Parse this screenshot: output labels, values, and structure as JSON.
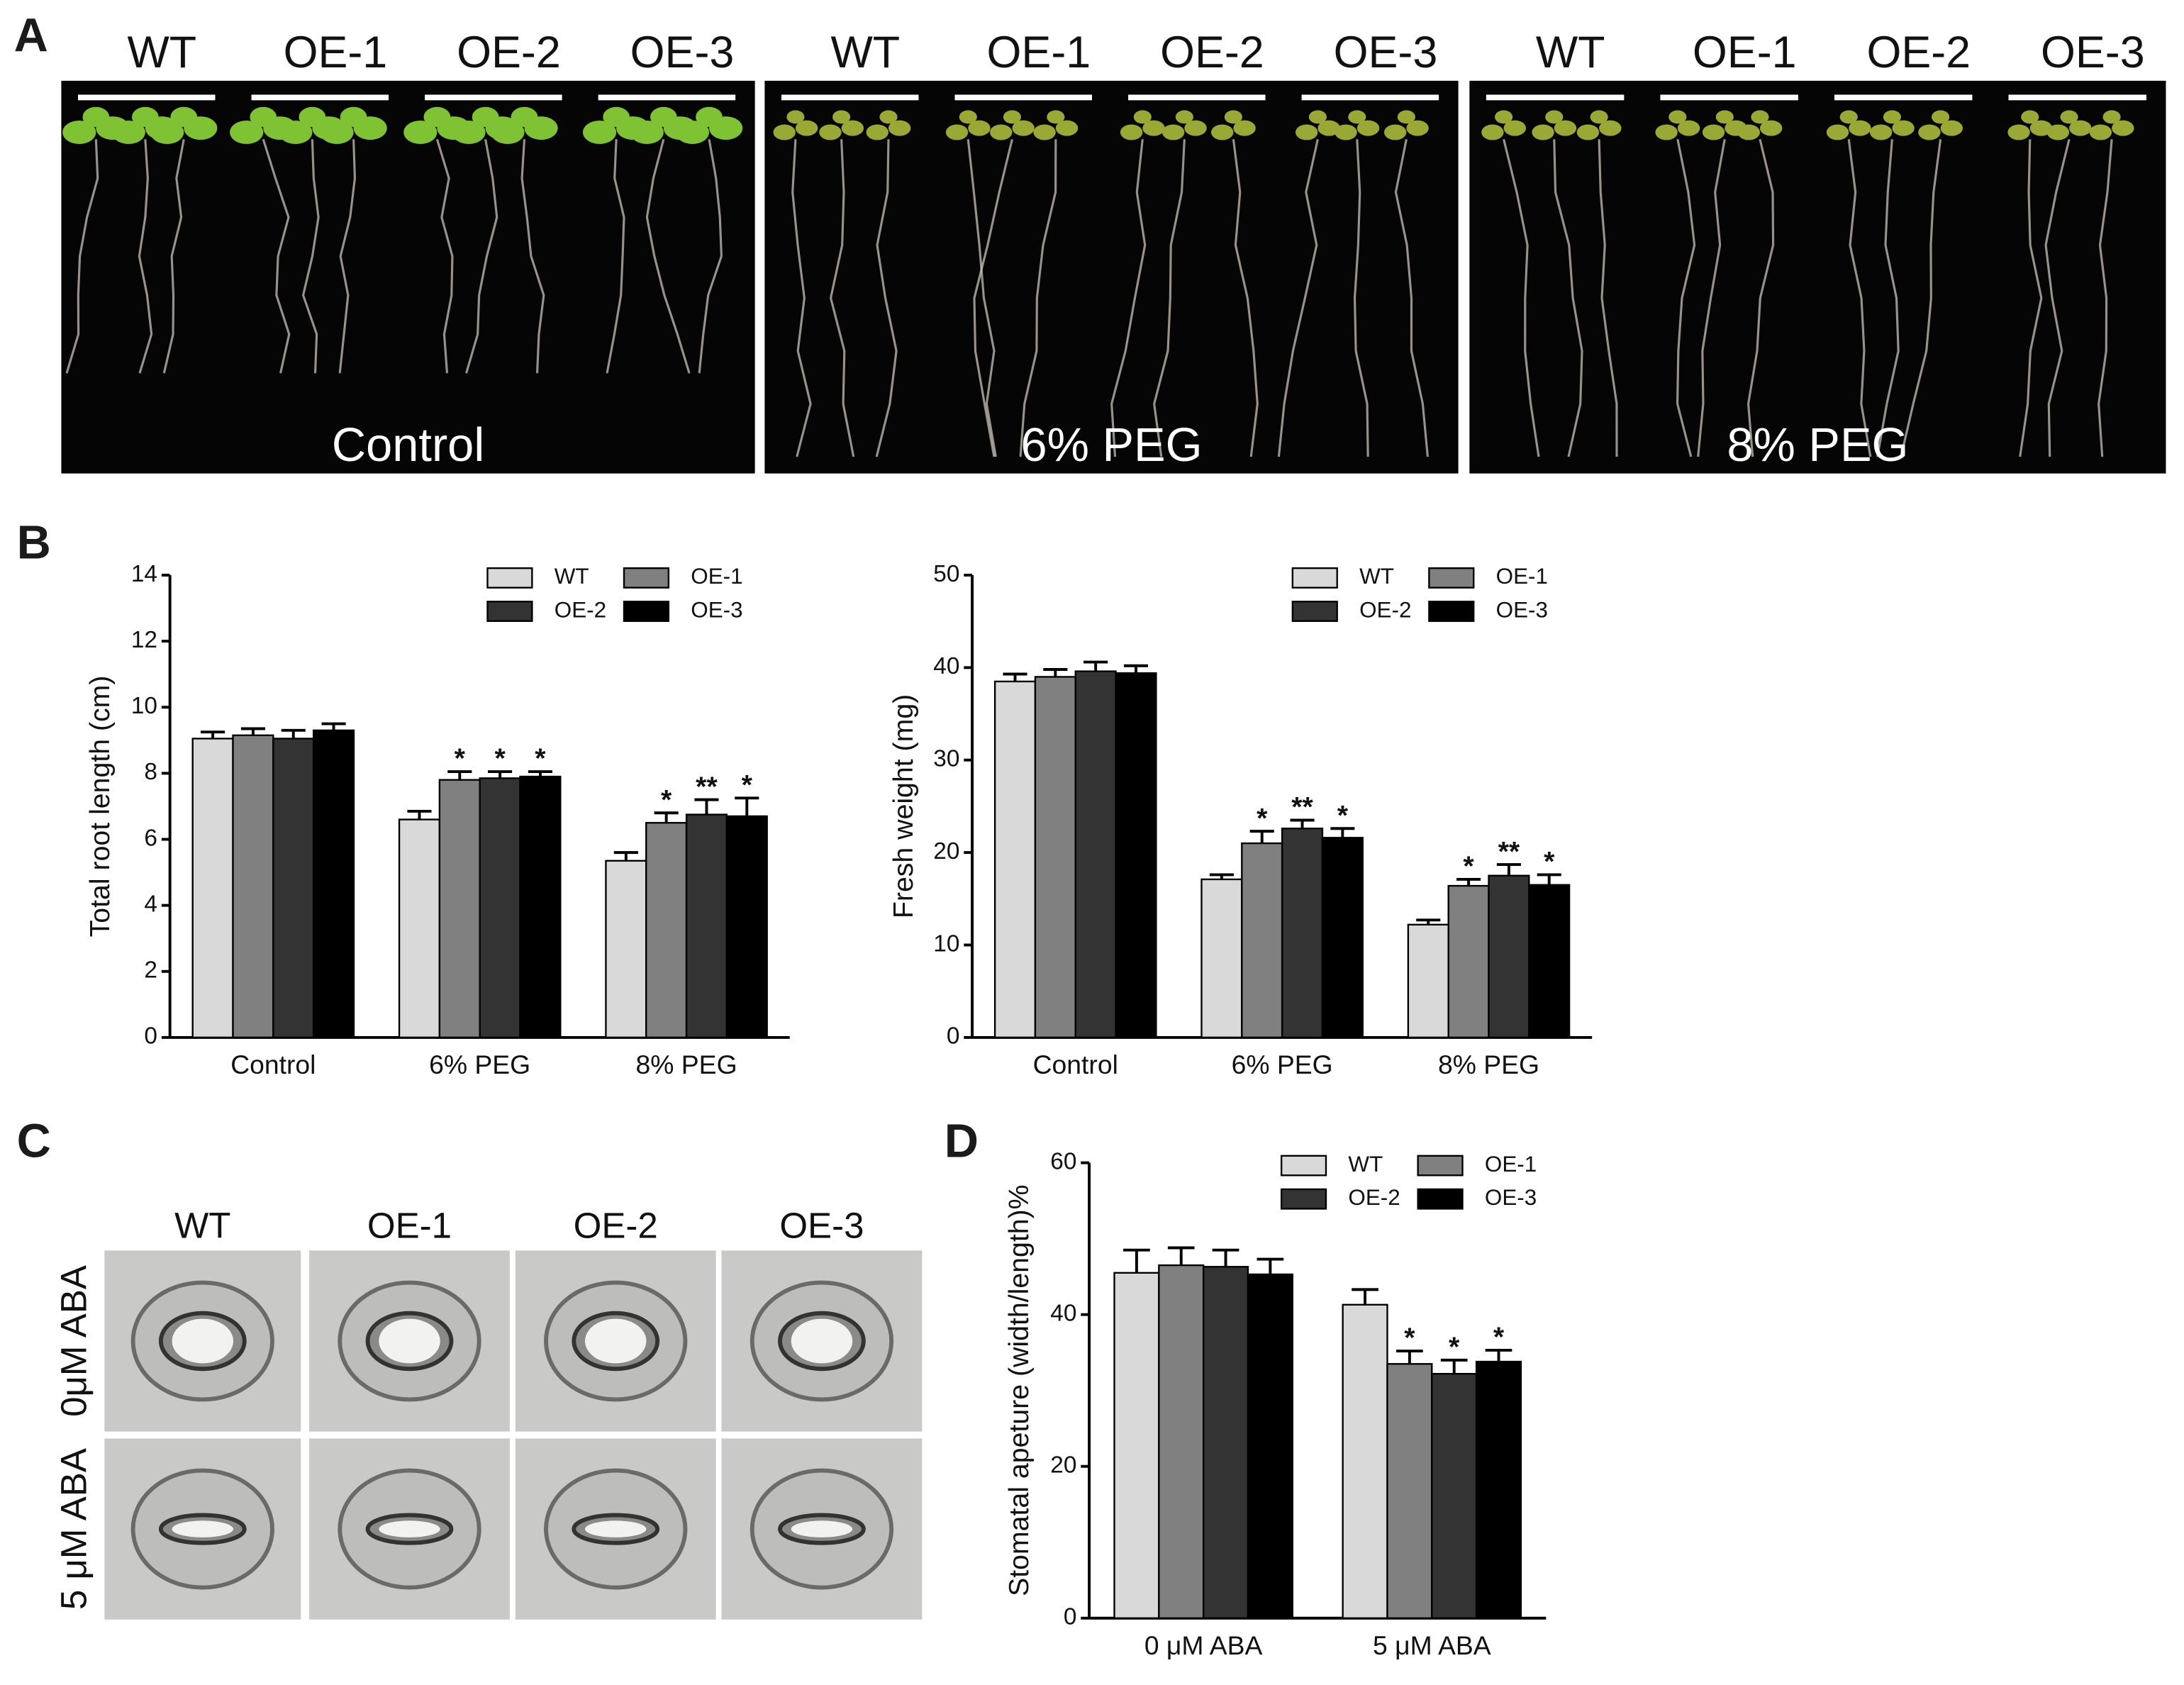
{
  "figure": {
    "panel_labels": [
      "A",
      "B",
      "C",
      "D"
    ],
    "panel_a": {
      "genotypes": [
        "WT",
        "OE-1",
        "OE-2",
        "OE-3"
      ],
      "conditions": [
        "Control",
        "6% PEG",
        "8% PEG"
      ]
    },
    "panel_c": {
      "genotypes": [
        "WT",
        "OE-1",
        "OE-2",
        "OE-3"
      ],
      "treatments": [
        "0μM ABA",
        "5 μM ABA"
      ]
    }
  },
  "chart_data": [
    {
      "type": "bar",
      "y_label": "Total root length (cm)",
      "categories": [
        "Control",
        "6% PEG",
        "8% PEG"
      ],
      "ylim": [
        0,
        14
      ],
      "yticks": [
        0,
        2,
        4,
        6,
        8,
        10,
        12,
        14
      ],
      "series": [
        {
          "name": "WT",
          "color": "#d9d9d9",
          "values": [
            9.05,
            6.6,
            5.35
          ],
          "errors": [
            0.2,
            0.25,
            0.25
          ],
          "significance": [
            null,
            null,
            null
          ]
        },
        {
          "name": "OE-1",
          "color": "#808080",
          "values": [
            9.15,
            7.8,
            6.5
          ],
          "errors": [
            0.2,
            0.25,
            0.3
          ],
          "significance": [
            null,
            "*",
            "*"
          ]
        },
        {
          "name": "OE-2",
          "color": "#333333",
          "values": [
            9.05,
            7.85,
            6.75
          ],
          "errors": [
            0.25,
            0.2,
            0.45
          ],
          "significance": [
            null,
            "*",
            "**"
          ]
        },
        {
          "name": "OE-3",
          "color": "#000000",
          "values": [
            9.3,
            7.9,
            6.7
          ],
          "errors": [
            0.2,
            0.15,
            0.55
          ],
          "significance": [
            null,
            "*",
            "*"
          ]
        }
      ]
    },
    {
      "type": "bar",
      "y_label": "Fresh weight (mg)",
      "categories": [
        "Control",
        "6% PEG",
        "8% PEG"
      ],
      "ylim": [
        0,
        50
      ],
      "yticks": [
        0,
        10,
        20,
        30,
        40,
        50
      ],
      "series": [
        {
          "name": "WT",
          "color": "#d9d9d9",
          "values": [
            38.5,
            17.1,
            12.2
          ],
          "errors": [
            0.8,
            0.5,
            0.5
          ],
          "significance": [
            null,
            null,
            null
          ]
        },
        {
          "name": "OE-1",
          "color": "#808080",
          "values": [
            39,
            21,
            16.4
          ],
          "errors": [
            0.8,
            1.3,
            0.7
          ],
          "significance": [
            null,
            "*",
            "*"
          ]
        },
        {
          "name": "OE-2",
          "color": "#333333",
          "values": [
            39.6,
            22.6,
            17.5
          ],
          "errors": [
            1.0,
            0.9,
            1.2
          ],
          "significance": [
            null,
            "**",
            "**"
          ]
        },
        {
          "name": "OE-3",
          "color": "#000000",
          "values": [
            39.4,
            21.6,
            16.5
          ],
          "errors": [
            0.8,
            1.0,
            1.1
          ],
          "significance": [
            null,
            "*",
            "*"
          ]
        }
      ]
    },
    {
      "type": "bar",
      "y_label": "Stomatal apeture (width/length)%",
      "categories": [
        "0 μM ABA",
        "5 μM ABA"
      ],
      "ylim": [
        0,
        60
      ],
      "yticks": [
        0,
        20,
        40,
        60
      ],
      "series": [
        {
          "name": "WT",
          "color": "#d9d9d9",
          "values": [
            45.5,
            41.3
          ],
          "errors": [
            3,
            2
          ],
          "significance": [
            null,
            null
          ]
        },
        {
          "name": "OE-1",
          "color": "#808080",
          "values": [
            46.5,
            33.5
          ],
          "errors": [
            2.3,
            1.7
          ],
          "significance": [
            null,
            "*"
          ]
        },
        {
          "name": "OE-2",
          "color": "#333333",
          "values": [
            46.3,
            32.2
          ],
          "errors": [
            2.2,
            1.8
          ],
          "significance": [
            null,
            "*"
          ]
        },
        {
          "name": "OE-3",
          "color": "#000000",
          "values": [
            45.3,
            33.8
          ],
          "errors": [
            2,
            1.5
          ],
          "significance": [
            null,
            "*"
          ]
        }
      ]
    }
  ]
}
